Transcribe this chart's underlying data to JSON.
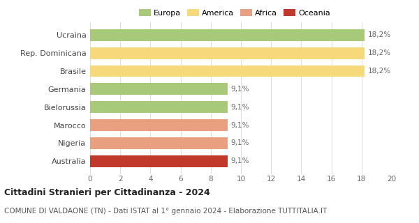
{
  "categories": [
    "Australia",
    "Nigeria",
    "Marocco",
    "Bielorussia",
    "Germania",
    "Brasile",
    "Rep. Dominicana",
    "Ucraina"
  ],
  "values": [
    9.1,
    9.1,
    9.1,
    9.1,
    9.1,
    18.2,
    18.2,
    18.2
  ],
  "colors": [
    "#c0392b",
    "#e8a080",
    "#e8a080",
    "#a8c87a",
    "#a8c87a",
    "#f5d97a",
    "#f5d97a",
    "#a8c87a"
  ],
  "bar_labels": [
    "9,1%",
    "9,1%",
    "9,1%",
    "9,1%",
    "9,1%",
    "18,2%",
    "18,2%",
    "18,2%"
  ],
  "xlim": [
    0,
    20
  ],
  "xticks": [
    0,
    2,
    4,
    6,
    8,
    10,
    12,
    14,
    16,
    18,
    20
  ],
  "legend_labels": [
    "Europa",
    "America",
    "Africa",
    "Oceania"
  ],
  "legend_colors": [
    "#a8c87a",
    "#f5d97a",
    "#e8a080",
    "#c0392b"
  ],
  "title": "Cittadini Stranieri per Cittadinanza - 2024",
  "subtitle": "COMUNE DI VALDAONE (TN) - Dati ISTAT al 1° gennaio 2024 - Elaborazione TUTTITALIA.IT",
  "title_fontsize": 9,
  "subtitle_fontsize": 7.5,
  "background_color": "#ffffff",
  "bar_height": 0.65,
  "label_fontsize": 7.5,
  "tick_fontsize": 7.5,
  "ytick_fontsize": 8
}
